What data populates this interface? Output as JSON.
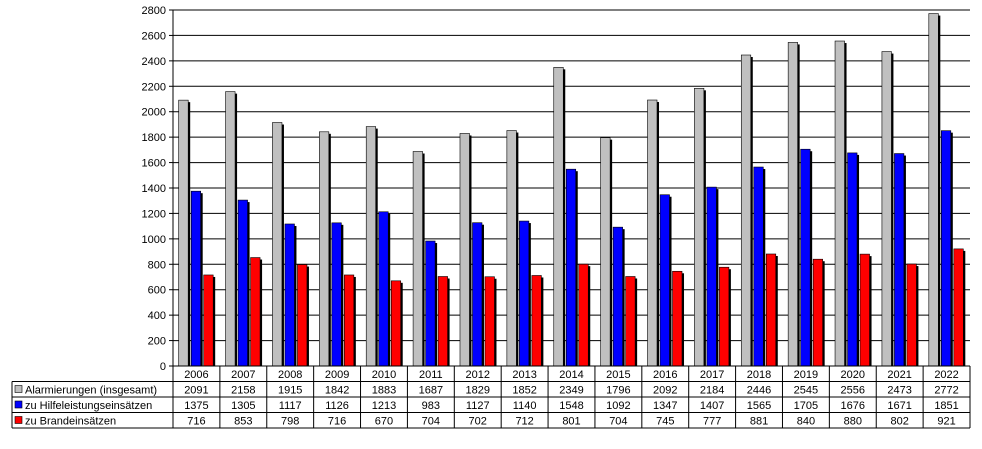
{
  "chart_data": {
    "type": "bar",
    "title": "",
    "xlabel": "",
    "ylabel": "",
    "ylim": [
      0,
      2800
    ],
    "yticks": [
      0,
      200,
      400,
      600,
      800,
      1000,
      1200,
      1400,
      1600,
      1800,
      2000,
      2200,
      2400,
      2600,
      2800
    ],
    "grid": true,
    "legend_position": "table-bottom",
    "categories": [
      "2006",
      "2007",
      "2008",
      "2009",
      "2010",
      "2011",
      "2012",
      "2013",
      "2014",
      "2015",
      "2016",
      "2017",
      "2018",
      "2019",
      "2020",
      "2021",
      "2022"
    ],
    "series": [
      {
        "name": "Alarmierungen (insgesamt)",
        "color": "#c0c0c0",
        "values": [
          2091,
          2158,
          1915,
          1842,
          1883,
          1687,
          1829,
          1852,
          2349,
          1796,
          2092,
          2184,
          2446,
          2545,
          2556,
          2473,
          2772
        ]
      },
      {
        "name": "zu Hilfeleistungseinsätzen",
        "color": "#0000ff",
        "values": [
          1375,
          1305,
          1117,
          1126,
          1213,
          983,
          1127,
          1140,
          1548,
          1092,
          1347,
          1407,
          1565,
          1705,
          1676,
          1671,
          1851
        ]
      },
      {
        "name": "zu Brandeinsätzen",
        "color": "#ff0000",
        "values": [
          716,
          853,
          798,
          716,
          670,
          704,
          702,
          712,
          801,
          704,
          745,
          777,
          881,
          840,
          880,
          802,
          921
        ]
      }
    ]
  }
}
